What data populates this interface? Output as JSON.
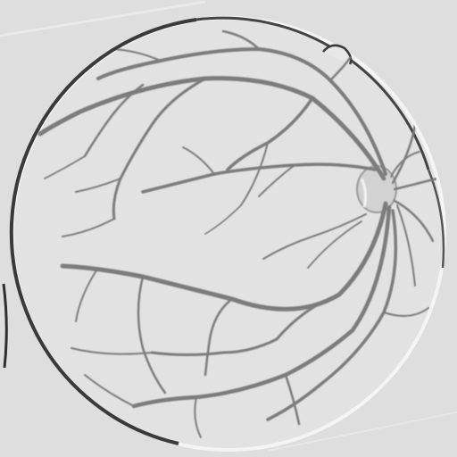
{
  "image": {
    "subject": "retinal-fundus-vessel-map",
    "colors": {
      "background": "#dedede",
      "disc_fill": "#e4e4e4",
      "disc_rim_dark": "#3a3a3a",
      "disc_rim_light": "#f4f4f4",
      "vessel": "#8a8a8a",
      "vessel_dark": "#6e6e6e",
      "optic_disc": "#cfcfcf"
    }
  }
}
